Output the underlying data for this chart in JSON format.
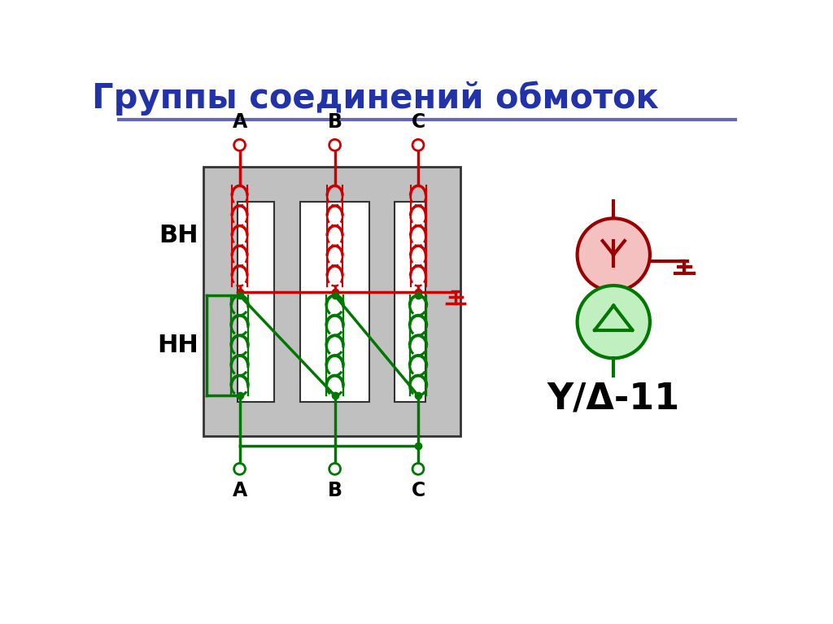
{
  "title": "Группы соединений обмоток",
  "title_color": "#2233aa",
  "title_fontsize": 30,
  "bg_color": "#ffffff",
  "red_color": "#cc0000",
  "dark_red_color": "#990000",
  "green_color": "#007700",
  "black_color": "#000000",
  "separator_color": "#6666bb",
  "label_BH": "ВН",
  "label_NN": "НН",
  "symbol_text": "Y/Δ-11",
  "core_gray": "#c0c0c0",
  "core_edge": "#333333"
}
